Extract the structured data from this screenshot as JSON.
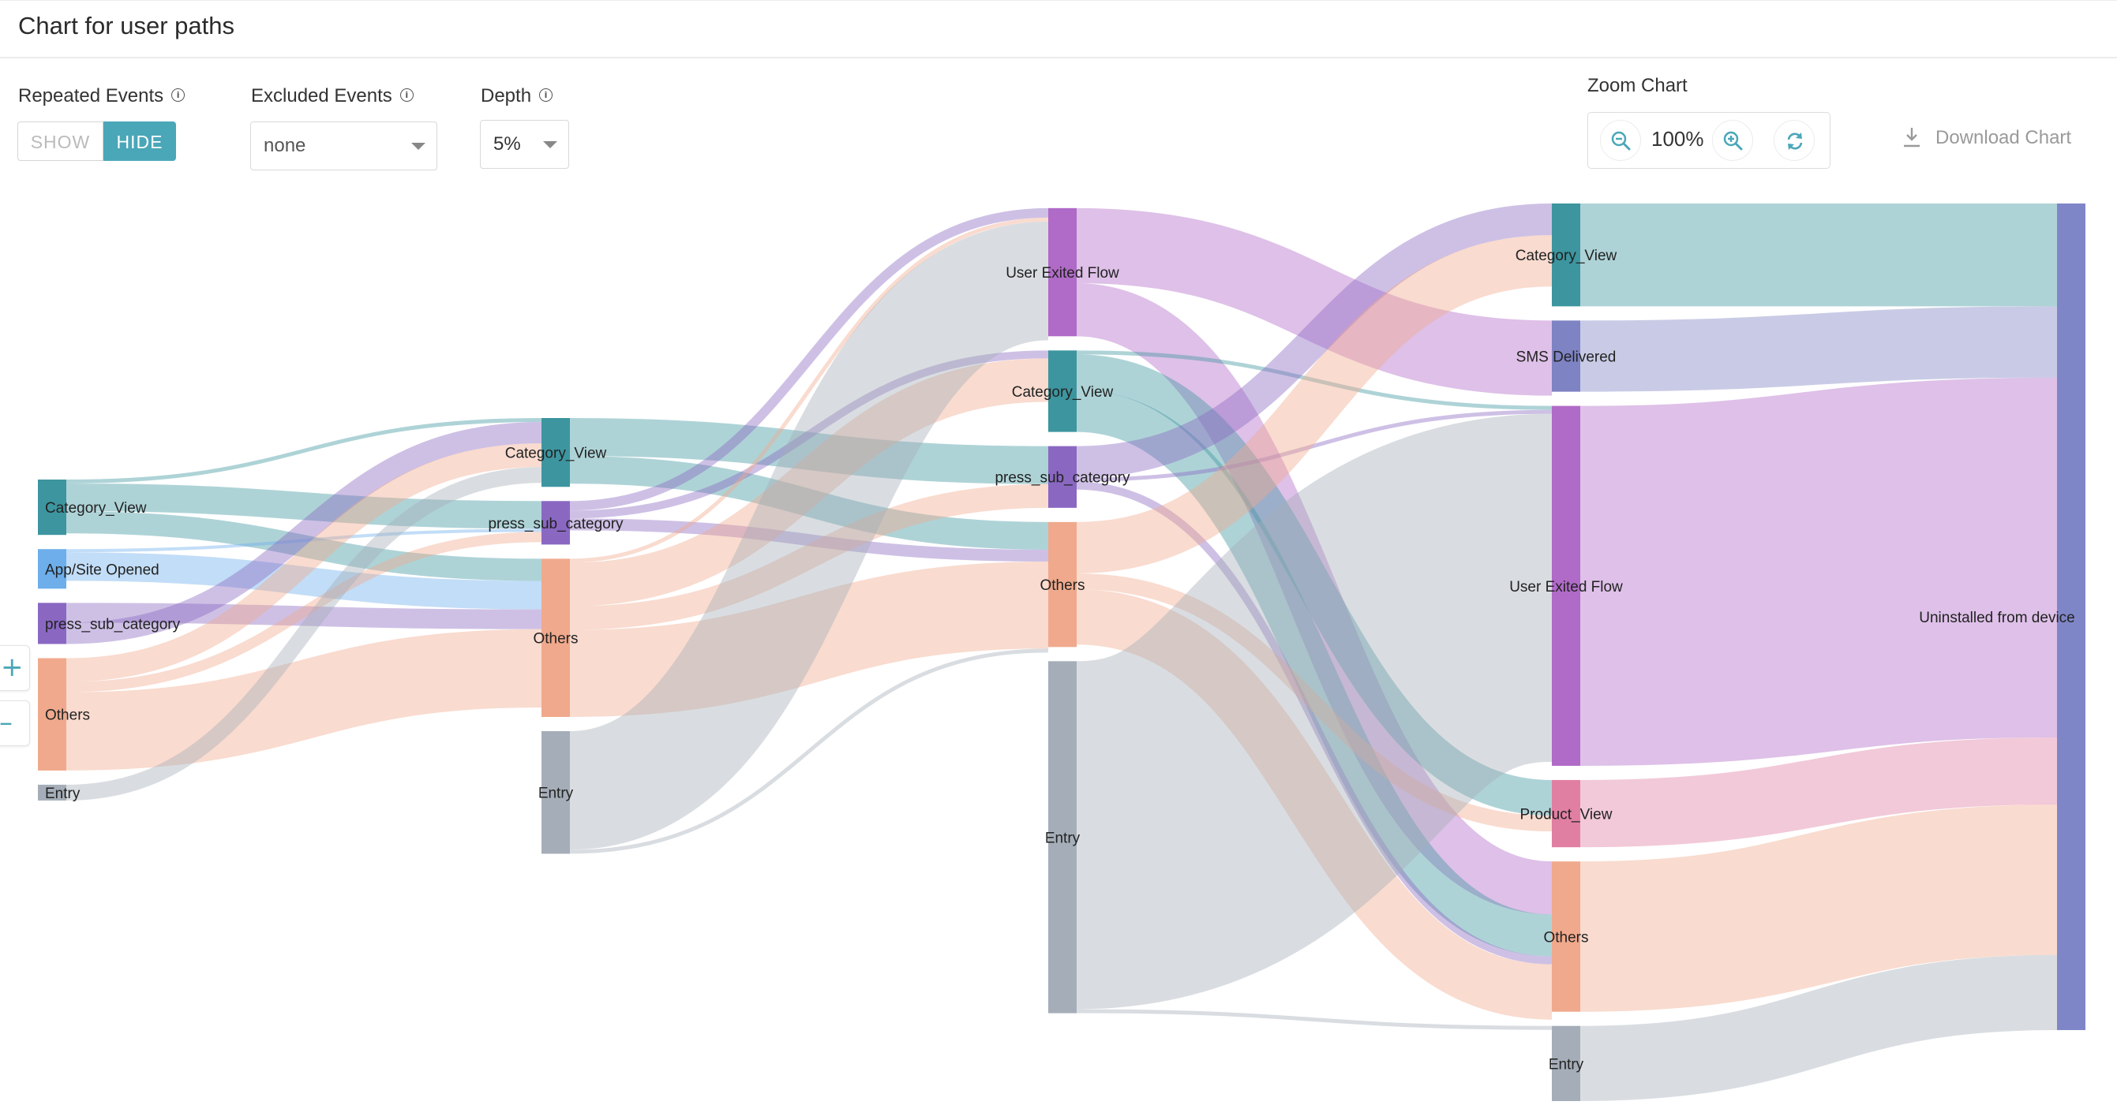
{
  "header": {
    "title": "Chart for user paths"
  },
  "controls": {
    "repeated_events": {
      "label": "Repeated Events",
      "info_icon": "info-icon",
      "show_label": "SHOW",
      "hide_label": "HIDE",
      "selected": "HIDE"
    },
    "excluded_events": {
      "label": "Excluded Events",
      "info_icon": "info-icon",
      "value": "none"
    },
    "depth": {
      "label": "Depth",
      "info_icon": "info-icon",
      "value": "5%"
    },
    "zoom": {
      "label": "Zoom Chart",
      "value": "100%",
      "zoom_out_icon": "zoom-out-icon",
      "zoom_in_icon": "zoom-in-icon",
      "reset_icon": "reset-icon"
    },
    "download": {
      "label": "Download Chart",
      "icon": "download-icon"
    },
    "side_zoom": {
      "plus": "+",
      "minus": "–"
    }
  },
  "colors": {
    "Category_View": "#3d959f",
    "App/Site Opened": "#6daeeb",
    "press_sub_category": "#8a68c2",
    "Others": "#f0a98c",
    "Entry": "#a5aeb8",
    "User Exited Flow": "#b06ac7",
    "SMS Delivered": "#7e83c4",
    "Product_View": "#e07fa2",
    "Uninstalled from device": "#7f86c8"
  },
  "chart_data": {
    "type": "sankey",
    "title": "Chart for user paths",
    "steps": [
      [
        "Category_View",
        "App/Site Opened",
        "press_sub_category",
        "Others",
        "Entry"
      ],
      [
        "Category_View",
        "press_sub_category",
        "Others",
        "Entry"
      ],
      [
        "User Exited Flow",
        "Category_View",
        "press_sub_category",
        "Others",
        "Entry"
      ],
      [
        "Category_View",
        "SMS Delivered",
        "User Exited Flow",
        "Product_View",
        "Others",
        "Entry"
      ],
      [
        "Uninstalled from device"
      ]
    ],
    "nodes": [
      {
        "id": "s1_cat",
        "step": 1,
        "label": "Category_View",
        "value": 70
      },
      {
        "id": "s1_app",
        "step": 1,
        "label": "App/Site Opened",
        "value": 50
      },
      {
        "id": "s1_press",
        "step": 1,
        "label": "press_sub_category",
        "value": 52
      },
      {
        "id": "s1_oth",
        "step": 1,
        "label": "Others",
        "value": 142
      },
      {
        "id": "s1_entry",
        "step": 1,
        "label": "Entry",
        "value": 20
      },
      {
        "id": "s2_cat",
        "step": 2,
        "label": "Category_View",
        "value": 87
      },
      {
        "id": "s2_press",
        "step": 2,
        "label": "press_sub_category",
        "value": 55
      },
      {
        "id": "s2_oth",
        "step": 2,
        "label": "Others",
        "value": 200
      },
      {
        "id": "s2_entry",
        "step": 2,
        "label": "Entry",
        "value": 155
      },
      {
        "id": "s3_uef",
        "step": 3,
        "label": "User Exited Flow",
        "value": 162
      },
      {
        "id": "s3_cat",
        "step": 3,
        "label": "Category_View",
        "value": 103
      },
      {
        "id": "s3_press",
        "step": 3,
        "label": "press_sub_category",
        "value": 78
      },
      {
        "id": "s3_oth",
        "step": 3,
        "label": "Others",
        "value": 158
      },
      {
        "id": "s3_entry",
        "step": 3,
        "label": "Entry",
        "value": 445
      },
      {
        "id": "s4_cat",
        "step": 4,
        "label": "Category_View",
        "value": 130
      },
      {
        "id": "s4_sms",
        "step": 4,
        "label": "SMS Delivered",
        "value": 90
      },
      {
        "id": "s4_uef",
        "step": 4,
        "label": "User Exited Flow",
        "value": 455
      },
      {
        "id": "s4_pv",
        "step": 4,
        "label": "Product_View",
        "value": 85
      },
      {
        "id": "s4_oth",
        "step": 4,
        "label": "Others",
        "value": 190
      },
      {
        "id": "s4_entry",
        "step": 4,
        "label": "Entry",
        "value": 95
      },
      {
        "id": "s5_unin",
        "step": 5,
        "label": "Uninstalled from device",
        "value": 1045
      }
    ],
    "links": [
      {
        "source": "s1_cat",
        "target": "s2_cat",
        "value": 5
      },
      {
        "source": "s1_cat",
        "target": "s2_press",
        "value": 35
      },
      {
        "source": "s1_cat",
        "target": "s2_oth",
        "value": 28
      },
      {
        "source": "s1_app",
        "target": "s2_press",
        "value": 4
      },
      {
        "source": "s1_app",
        "target": "s2_oth",
        "value": 36
      },
      {
        "source": "s1_press",
        "target": "s2_oth",
        "value": 25
      },
      {
        "source": "s1_press",
        "target": "s2_cat",
        "value": 27
      },
      {
        "source": "s1_oth",
        "target": "s2_cat",
        "value": 30
      },
      {
        "source": "s1_oth",
        "target": "s2_press",
        "value": 13
      },
      {
        "source": "s1_oth",
        "target": "s2_oth",
        "value": 99
      },
      {
        "source": "s1_entry",
        "target": "s2_cat",
        "value": 20
      },
      {
        "source": "s2_cat",
        "target": "s3_press",
        "value": 48
      },
      {
        "source": "s2_cat",
        "target": "s3_oth",
        "value": 35
      },
      {
        "source": "s2_press",
        "target": "s3_uef",
        "value": 12
      },
      {
        "source": "s2_press",
        "target": "s3_cat",
        "value": 10
      },
      {
        "source": "s2_press",
        "target": "s3_oth",
        "value": 15
      },
      {
        "source": "s2_oth",
        "target": "s3_uef",
        "value": 5
      },
      {
        "source": "s2_oth",
        "target": "s3_cat",
        "value": 55
      },
      {
        "source": "s2_oth",
        "target": "s3_press",
        "value": 30
      },
      {
        "source": "s2_oth",
        "target": "s3_oth",
        "value": 110
      },
      {
        "source": "s2_entry",
        "target": "s3_uef",
        "value": 150
      },
      {
        "source": "s2_entry",
        "target": "s3_oth",
        "value": 5
      },
      {
        "source": "s3_uef",
        "target": "s4_sms",
        "value": 95
      },
      {
        "source": "s3_uef",
        "target": "s4_oth",
        "value": 67
      },
      {
        "source": "s3_cat",
        "target": "s4_uef",
        "value": 5
      },
      {
        "source": "s3_cat",
        "target": "s4_pv",
        "value": 45
      },
      {
        "source": "s3_cat",
        "target": "s4_oth",
        "value": 53
      },
      {
        "source": "s3_press",
        "target": "s4_cat",
        "value": 40
      },
      {
        "source": "s3_press",
        "target": "s4_uef",
        "value": 5
      },
      {
        "source": "s3_press",
        "target": "s4_oth",
        "value": 10
      },
      {
        "source": "s3_oth",
        "target": "s4_cat",
        "value": 65
      },
      {
        "source": "s3_oth",
        "target": "s4_pv",
        "value": 20
      },
      {
        "source": "s3_oth",
        "target": "s4_oth",
        "value": 70
      },
      {
        "source": "s3_entry",
        "target": "s4_uef",
        "value": 440
      },
      {
        "source": "s3_entry",
        "target": "s4_entry",
        "value": 5
      },
      {
        "source": "s4_cat",
        "target": "s5_unin",
        "value": 130
      },
      {
        "source": "s4_sms",
        "target": "s5_unin",
        "value": 90
      },
      {
        "source": "s4_uef",
        "target": "s5_unin",
        "value": 455
      },
      {
        "source": "s4_pv",
        "target": "s5_unin",
        "value": 85
      },
      {
        "source": "s4_oth",
        "target": "s5_unin",
        "value": 190
      },
      {
        "source": "s4_entry",
        "target": "s5_unin",
        "value": 95
      }
    ]
  }
}
